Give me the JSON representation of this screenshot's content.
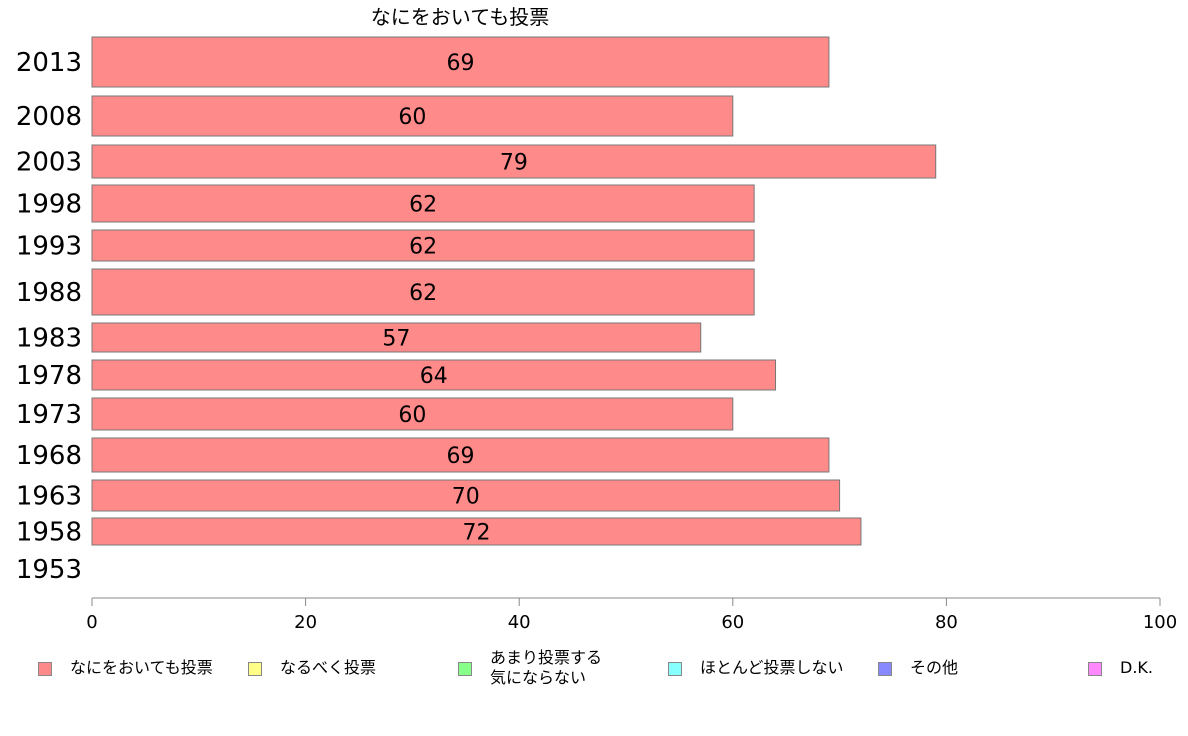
{
  "chart_data": {
    "type": "bar",
    "orientation": "horizontal",
    "title": "なにをおいても投票",
    "categories": [
      "2013",
      "2008",
      "2003",
      "1998",
      "1993",
      "1988",
      "1983",
      "1978",
      "1973",
      "1968",
      "1963",
      "1958",
      "1953"
    ],
    "values": [
      69,
      60,
      79,
      62,
      62,
      62,
      57,
      64,
      60,
      69,
      70,
      72,
      null
    ],
    "xlim": [
      0,
      100
    ],
    "xticks": [
      "0",
      "20",
      "40",
      "60",
      "80",
      "100"
    ],
    "bar_color": "#FF8A8A",
    "legend": [
      {
        "label": "なにをおいても投票",
        "color": "#FF8A8A"
      },
      {
        "label": "なるべく投票",
        "color": "#FFFF88"
      },
      {
        "label": "あまり投票する\n気にならない",
        "color": "#88FF88"
      },
      {
        "label": "ほとんど投票しない",
        "color": "#88FFFF"
      },
      {
        "label": "その他",
        "color": "#8888FF"
      },
      {
        "label": "D.K.",
        "color": "#FF88FF"
      }
    ]
  }
}
